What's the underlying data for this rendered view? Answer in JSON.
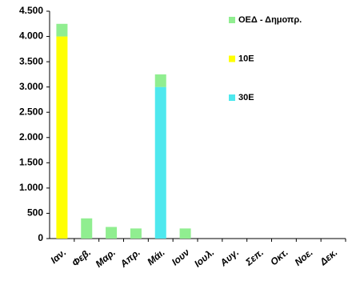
{
  "chart_data": {
    "type": "stacked_bar",
    "categories": [
      "Ιαν.",
      "Φεβ.",
      "Μαρ.",
      "Απρ.",
      "Μάι.",
      "Ιουν",
      "Ιουλ.",
      "Αυγ.",
      "Σεπ.",
      "Οκτ.",
      "Νοε.",
      "Δεκ."
    ],
    "series": [
      {
        "name": "ΟΕΔ - Δημοπρ.",
        "color": "#90ee90",
        "values": [
          250,
          400,
          230,
          200,
          250,
          200,
          0,
          0,
          0,
          0,
          0,
          0
        ]
      },
      {
        "name": "10Ε",
        "color": "#ffff00",
        "values": [
          4000,
          0,
          0,
          0,
          0,
          0,
          0,
          0,
          0,
          0,
          0,
          0
        ]
      },
      {
        "name": "30Ε",
        "color": "#4ee8ee",
        "values": [
          0,
          0,
          0,
          0,
          3000,
          0,
          0,
          0,
          0,
          0,
          0,
          0
        ]
      }
    ],
    "ylim": [
      0,
      4500
    ],
    "yticks": [
      0,
      500,
      {
        "value": 1000,
        "label": "1.000"
      },
      {
        "value": 1500,
        "label": "1.500"
      },
      {
        "value": 2000,
        "label": "2.000"
      },
      {
        "value": 2500,
        "label": "2.500"
      },
      {
        "value": 3000,
        "label": "3.000"
      },
      {
        "value": 3500,
        "label": "3.500"
      },
      {
        "value": 4000,
        "label": "4.000"
      },
      {
        "value": 4500,
        "label": "4.500"
      }
    ],
    "legend": "top-right",
    "grid": false
  }
}
